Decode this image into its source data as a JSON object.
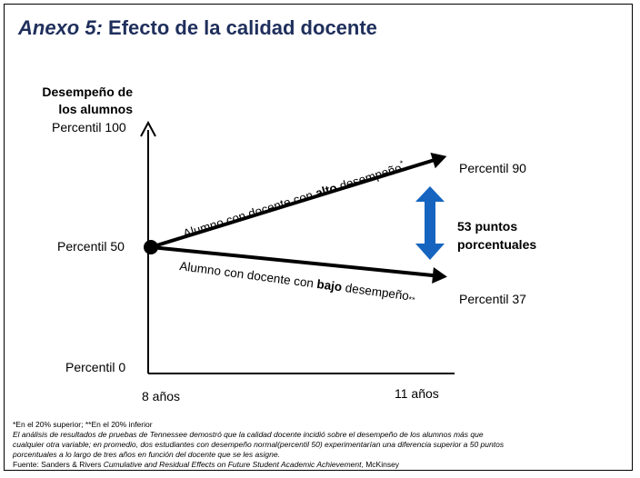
{
  "header": {
    "title_prefix": "Anexo 5:",
    "title_text": "Efecto de la calidad docente"
  },
  "axes": {
    "y_title_line1": "Desempeño de",
    "y_title_line2": "los alumnos",
    "y_tick_top": "Percentil 100",
    "y_tick_mid": "Percentil 50",
    "y_tick_bottom": "Percentil 0",
    "x_tick_start": "8 años",
    "x_tick_end": "11 años"
  },
  "lines": {
    "high": {
      "pre": "Alumno con docente con ",
      "bold": "alto",
      "post": " desempeño",
      "mark": "*",
      "end_label": "Percentil 90",
      "start_percentile": 50,
      "end_percentile": 90
    },
    "low": {
      "pre": "Alumno con docente con ",
      "bold": "bajo",
      "post": " desempeño",
      "mark": "**",
      "end_label": "Percentil 37",
      "start_percentile": 50,
      "end_percentile": 37
    }
  },
  "gap": {
    "line1": "53 puntos",
    "line2": "porcentuales",
    "arrow_color": "#1565c0"
  },
  "notes": {
    "line1": "*En el 20% superior; **En el 20% inferior",
    "line2": "El análisis de resultados de pruebas de Tennessee demostró que la calidad docente incidió sobre el desempeño de los alumnos más que",
    "line3": "cualquier otra variable; en promedio, dos estudiantes con desempeño normal(percentil 50)  experimentarían una diferencia superior a 50 puntos",
    "line4": "porcentuales a lo largo de tres años en función del docente que se les asigne.",
    "source_prefix": "Fuente: Sanders & Rivers ",
    "source_title": "Cumulative and Residual Effects on Future Student Academic Achievement",
    "source_suffix": ", McKinsey"
  }
}
